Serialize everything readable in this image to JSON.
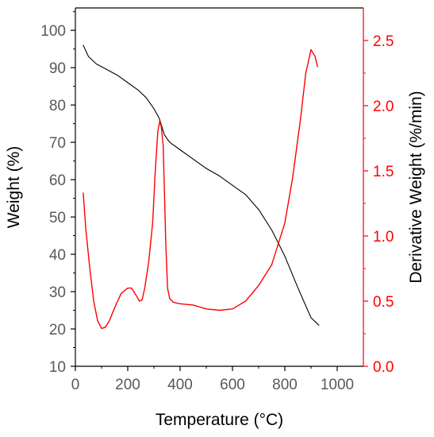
{
  "chart_data": {
    "type": "line",
    "xlabel": "Temperature (°C)",
    "ylabel": "Weight (%)",
    "y2label": "Derivative Weight (%/min)",
    "xlim": [
      0,
      1100
    ],
    "ylim": [
      10,
      106
    ],
    "y2lim": [
      0,
      2.75
    ],
    "xticks": [
      "0",
      "200",
      "400",
      "600",
      "800",
      "1000"
    ],
    "yticks": [
      "10",
      "20",
      "30",
      "40",
      "50",
      "60",
      "70",
      "80",
      "90",
      "100"
    ],
    "y2ticks": [
      "0.0",
      "0.5",
      "1.0",
      "1.5",
      "2.0",
      "2.5"
    ],
    "grid": false,
    "colors": {
      "weight": "#000000",
      "derivative": "#ff0000",
      "axis": "#000000",
      "right_axis": "#ff0000",
      "tick_text": "#595959"
    },
    "series": [
      {
        "axis": "left",
        "x": [
          30,
          50,
          80,
          120,
          160,
          200,
          240,
          270,
          300,
          320,
          340,
          360,
          400,
          450,
          500,
          550,
          600,
          650,
          700,
          750,
          800,
          850,
          900,
          930
        ],
        "values": [
          96,
          93,
          91,
          89.5,
          88,
          86,
          84,
          82,
          79,
          76.5,
          72,
          70,
          68,
          65.5,
          63,
          61,
          58.5,
          56,
          52,
          46.5,
          39.5,
          31,
          23,
          21
        ]
      },
      {
        "axis": "right",
        "x": [
          30,
          40,
          55,
          70,
          85,
          100,
          115,
          130,
          150,
          175,
          200,
          215,
          230,
          245,
          255,
          265,
          280,
          295,
          305,
          315,
          322,
          328,
          335,
          340,
          345,
          352,
          360,
          375,
          400,
          450,
          500,
          550,
          600,
          650,
          700,
          750,
          800,
          830,
          860,
          880,
          900,
          915,
          925
        ],
        "values": [
          1.33,
          1.05,
          0.75,
          0.5,
          0.35,
          0.29,
          0.3,
          0.35,
          0.45,
          0.56,
          0.6,
          0.6,
          0.55,
          0.5,
          0.51,
          0.6,
          0.8,
          1.1,
          1.5,
          1.8,
          1.88,
          1.84,
          1.7,
          1.35,
          0.95,
          0.6,
          0.52,
          0.49,
          0.48,
          0.47,
          0.44,
          0.43,
          0.44,
          0.5,
          0.62,
          0.78,
          1.1,
          1.45,
          1.9,
          2.25,
          2.43,
          2.38,
          2.3
        ]
      }
    ]
  }
}
